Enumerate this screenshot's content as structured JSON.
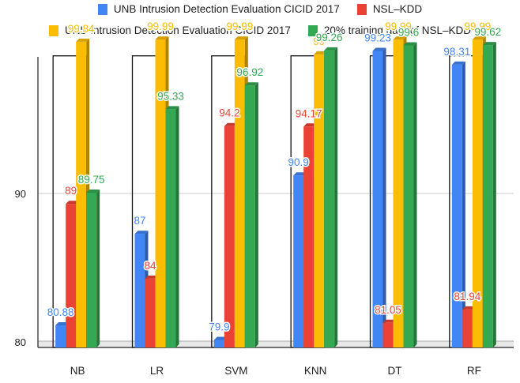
{
  "chart_data": {
    "type": "bar",
    "categories": [
      "NB",
      "LR",
      "SVM",
      "KNN",
      "DT",
      "RF"
    ],
    "series": [
      {
        "name": "UNB Intrusion Detection Evaluation CICID 2017",
        "color": "#4285f4",
        "values": [
          80.88,
          87,
          79.9,
          90.9,
          99.23,
          98.31
        ],
        "labels": [
          "80.88",
          "87",
          "79.9",
          "90.9",
          "99.23",
          "98.31"
        ]
      },
      {
        "name": "NSL–KDD",
        "color": "#ea4335",
        "values": [
          89,
          84,
          94.2,
          94.17,
          81.05,
          81.94
        ],
        "labels": [
          "89",
          "84",
          "94.2",
          "94.17",
          "81.05",
          "81.94"
        ]
      },
      {
        "name": "UNB Intrusion Detection Evaluation CICID 2017",
        "color": "#fbbc04",
        "values": [
          99.84,
          99.99,
          99.99,
          99,
          99.99,
          99.99
        ],
        "labels": [
          "99.84",
          "99.99",
          "99.99",
          "99",
          "99.99",
          "99.99"
        ]
      },
      {
        "name": "20% training data of NSL–KDD",
        "color": "#34a853",
        "values": [
          89.75,
          95.33,
          96.92,
          99.26,
          99.6,
          99.62
        ],
        "labels": [
          "89.75",
          "95.33",
          "96.92",
          "99.26",
          "99.6",
          "99.62"
        ]
      }
    ],
    "outline_boxes_value": 98.9,
    "yticks": [
      "80",
      "90"
    ],
    "ylim": [
      79.4,
      102
    ],
    "title": "",
    "xlabel": "",
    "ylabel": "",
    "legend_position": "top",
    "grid": true
  }
}
